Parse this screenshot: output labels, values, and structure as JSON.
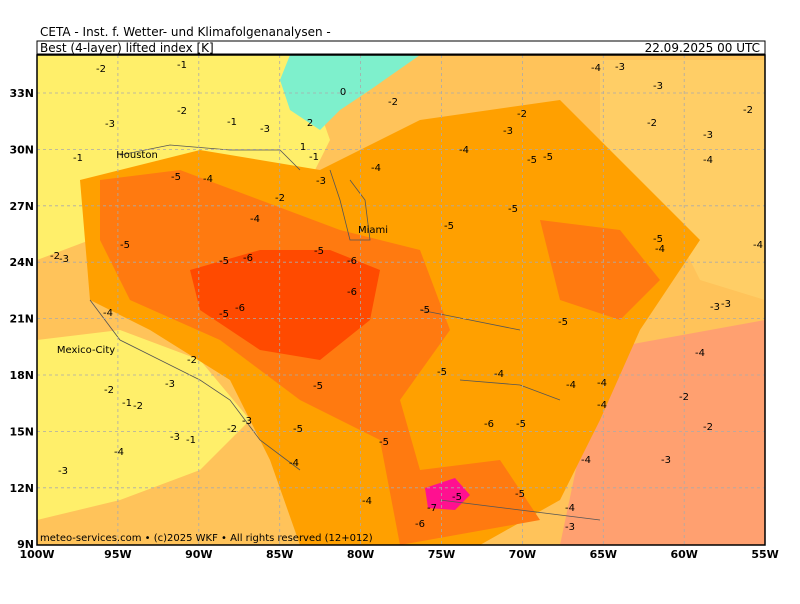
{
  "header": {
    "source": "CETA - Inst. f. Wetter- und Klimafolgenanalysen -",
    "product": "Best (4-layer) lifted index [K]",
    "date": "22.09.2025 00 UTC"
  },
  "axes": {
    "lat_labels": [
      "33N",
      "30N",
      "27N",
      "24N",
      "21N",
      "18N",
      "15N",
      "12N",
      "9N"
    ],
    "lon_labels": [
      "100W",
      "95W",
      "90W",
      "85W",
      "80W",
      "75W",
      "70W",
      "65W",
      "60W",
      "55W"
    ]
  },
  "places": [
    "Houston",
    "Miami",
    "Mexico-City"
  ],
  "contour_labels": [
    "-2",
    "-1",
    "-3",
    "-2",
    "-1",
    "-3",
    "-1",
    "-5",
    "-4",
    "-3",
    "-2",
    "-4",
    "-5",
    "-2",
    "-3",
    "-5",
    "-6",
    "-5",
    "-6",
    "-6",
    "-5",
    "-6",
    "-4",
    "-2",
    "-2",
    "-3",
    "-1",
    "-2",
    "-5",
    "-5",
    "-3",
    "-2",
    "-3",
    "-1",
    "-4",
    "-4",
    "-3",
    "-5",
    "-4",
    "-6",
    "-7",
    "-5",
    "-5",
    "-4",
    "-3",
    "-6",
    "-5",
    "-4",
    "-4",
    "-4",
    "-4",
    "-5",
    "-4",
    "-5",
    "-5",
    "-5",
    "-5",
    "-4",
    "-4",
    "-5",
    "-5",
    "-3",
    "-2",
    "-2",
    "0",
    "2",
    "1",
    "-1",
    "-4",
    "-3",
    "-3",
    "-2",
    "-3",
    "-4",
    "-2",
    "-5",
    "-4",
    "-4",
    "-3",
    "-3",
    "-4",
    "-2",
    "-2",
    "-3"
  ],
  "credits": "meteo-services.com • (c)2025 WKF • All rights reserved (12+012)"
}
